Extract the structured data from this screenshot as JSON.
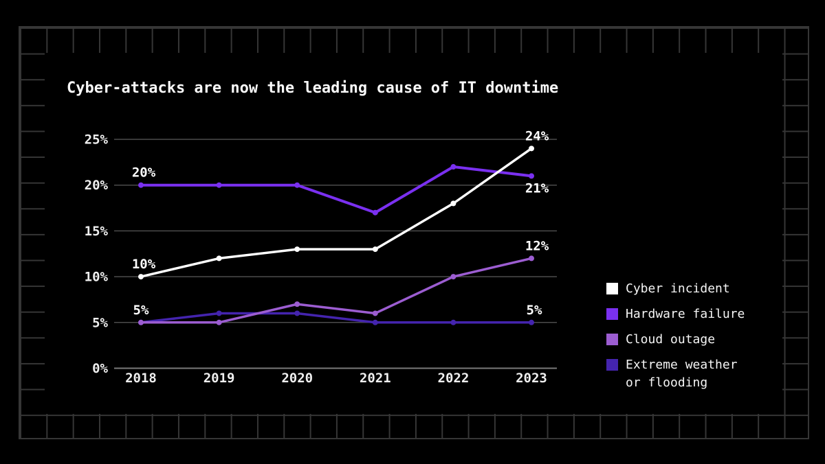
{
  "page": {
    "title": "Cyber-attacks are now the leading cause of IT downtime"
  },
  "chart_data": {
    "type": "line",
    "title": "Cyber-attacks are now the leading cause of IT downtime",
    "x": [
      "2018",
      "2019",
      "2020",
      "2021",
      "2022",
      "2023"
    ],
    "series": [
      {
        "name": "Cyber incident",
        "color": "#ffffff",
        "values": [
          10,
          12,
          13,
          13,
          18,
          24
        ]
      },
      {
        "name": "Hardware failure",
        "color": "#7a30f0",
        "values": [
          20,
          20,
          20,
          17,
          22,
          21
        ]
      },
      {
        "name": "Cloud outage",
        "color": "#9c5dd1",
        "values": [
          5,
          5,
          7,
          6,
          10,
          12
        ]
      },
      {
        "name": "Extreme weather or flooding",
        "color": "#4424ae",
        "values": [
          5,
          6,
          6,
          5,
          5,
          5
        ]
      }
    ],
    "ylim": [
      0,
      25
    ],
    "yticks": [
      {
        "v": 0,
        "label": "0%"
      },
      {
        "v": 5,
        "label": "5%"
      },
      {
        "v": 10,
        "label": "10%"
      },
      {
        "v": 15,
        "label": "15%"
      },
      {
        "v": 20,
        "label": "20%"
      },
      {
        "v": 25,
        "label": "25%"
      }
    ],
    "grid": true,
    "legend_position": "right",
    "point_labels": [
      {
        "series": "Hardware failure",
        "x": "2018",
        "text": "20%",
        "position": "above",
        "dx": 4
      },
      {
        "series": "Cyber incident",
        "x": "2018",
        "text": "10%",
        "position": "above",
        "dx": 4
      },
      {
        "series": "Extreme weather or flooding",
        "x": "2018",
        "text": "5%",
        "position": "above",
        "dx": 0
      },
      {
        "series": "Cyber incident",
        "x": "2023",
        "text": "24%",
        "position": "above",
        "dx": 8
      },
      {
        "series": "Hardware failure",
        "x": "2023",
        "text": "21%",
        "position": "below",
        "dx": 8
      },
      {
        "series": "Cloud outage",
        "x": "2023",
        "text": "12%",
        "position": "above",
        "dx": 8
      },
      {
        "series": "Extreme weather or flooding",
        "x": "2023",
        "text": "5%",
        "position": "above",
        "dx": 4
      }
    ]
  },
  "legend": {
    "items": [
      {
        "label": "Cyber incident",
        "color": "#ffffff"
      },
      {
        "label": "Hardware failure",
        "color": "#7a30f0"
      },
      {
        "label": "Cloud outage",
        "color": "#9c5dd1"
      },
      {
        "label": "Extreme weather or flooding",
        "color": "#4424ae"
      }
    ]
  },
  "style": {
    "grid_line_color": "#4c4c4c",
    "axis_line_color": "#7a7a7a",
    "tick_label_color": "#efefef",
    "value_label_color": "#ffffff",
    "background": "#000000",
    "frame_grid_color": "#363636"
  }
}
